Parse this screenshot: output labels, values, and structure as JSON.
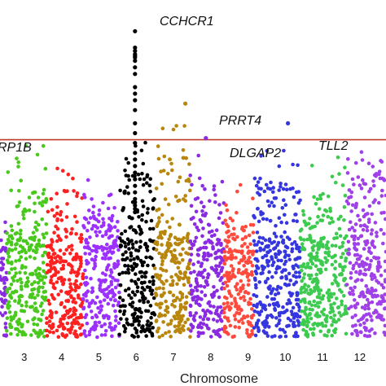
{
  "chart_data": {
    "type": "scatter",
    "subtype": "manhattan",
    "title": "",
    "xlabel": "Chromosome",
    "ylabel": "",
    "xlim": [
      2.35,
      12.7
    ],
    "ylim": [
      0,
      10
    ],
    "grid": false,
    "threshold": {
      "value": 6.0,
      "color": "#c0392b"
    },
    "ticks": [
      {
        "chrom": 3,
        "label": "3"
      },
      {
        "chrom": 4,
        "label": "4"
      },
      {
        "chrom": 5,
        "label": "5"
      },
      {
        "chrom": 6,
        "label": "6"
      },
      {
        "chrom": 7,
        "label": "7"
      },
      {
        "chrom": 8,
        "label": "8"
      },
      {
        "chrom": 9,
        "label": "9"
      },
      {
        "chrom": 10,
        "label": "10"
      },
      {
        "chrom": 11,
        "label": "11"
      },
      {
        "chrom": 12,
        "label": "12"
      }
    ],
    "chromosomes": [
      {
        "chrom": 2,
        "start": 2.35,
        "end": 2.53,
        "color": "#8a2be2",
        "base": 2.6,
        "peak": 3.2
      },
      {
        "chrom": 3,
        "start": 2.53,
        "end": 3.6,
        "color": "#49c91c",
        "base": 2.9,
        "peak": 4.7
      },
      {
        "chrom": 4,
        "start": 3.6,
        "end": 4.58,
        "color": "#ff2020",
        "base": 2.4,
        "peak": 4.3
      },
      {
        "chrom": 5,
        "start": 4.58,
        "end": 5.55,
        "color": "#9b30ff",
        "base": 2.7,
        "peak": 3.6
      },
      {
        "chrom": 6,
        "start": 5.55,
        "end": 6.5,
        "color": "#000000",
        "base": 2.9,
        "peak": 4.9
      },
      {
        "chrom": 7,
        "start": 6.5,
        "end": 7.45,
        "color": "#b8860b",
        "base": 3.1,
        "peak": 5.4
      },
      {
        "chrom": 8,
        "start": 7.45,
        "end": 8.35,
        "color": "#8a2be2",
        "base": 2.8,
        "peak": 4.6
      },
      {
        "chrom": 9,
        "start": 8.35,
        "end": 9.15,
        "color": "#ff4a3d",
        "base": 2.6,
        "peak": 3.6
      },
      {
        "chrom": 10,
        "start": 9.15,
        "end": 10.4,
        "color": "#3636e0",
        "base": 2.8,
        "peak": 4.5
      },
      {
        "chrom": 11,
        "start": 10.4,
        "end": 11.65,
        "color": "#3ccb4f",
        "base": 2.7,
        "peak": 4.3
      },
      {
        "chrom": 12,
        "start": 11.65,
        "end": 12.7,
        "color": "#a040e8",
        "base": 2.9,
        "peak": 4.9
      }
    ],
    "highlights": [
      {
        "chrom": 6,
        "color": "#000000",
        "x": 5.97,
        "values": [
          9.3,
          8.8,
          8.7,
          8.6,
          8.55,
          8.5,
          8.4,
          8.2,
          8.0,
          7.6,
          7.4,
          7.2,
          6.9,
          6.5,
          6.2,
          5.9,
          5.6,
          5.4,
          5.2,
          5.0,
          4.8,
          4.6,
          4.4,
          4.2,
          4.1,
          4.0,
          3.9,
          3.8
        ]
      },
      {
        "chrom": 7,
        "color": "#b8860b",
        "x": 7.32,
        "values": [
          7.1
        ]
      },
      {
        "chrom": 10,
        "color": "#3636e0",
        "x": 10.07,
        "values": [
          6.5
        ]
      },
      {
        "chrom": 8,
        "color": "#8a2be2",
        "x": 7.87,
        "values": [
          6.05
        ]
      }
    ],
    "annotations": [
      {
        "text": "CCHCR1"
      },
      {
        "text": "PRRT4"
      },
      {
        "text": "DLGAP2"
      },
      {
        "text": "TLL2"
      },
      {
        "text": "RP1B"
      }
    ]
  }
}
